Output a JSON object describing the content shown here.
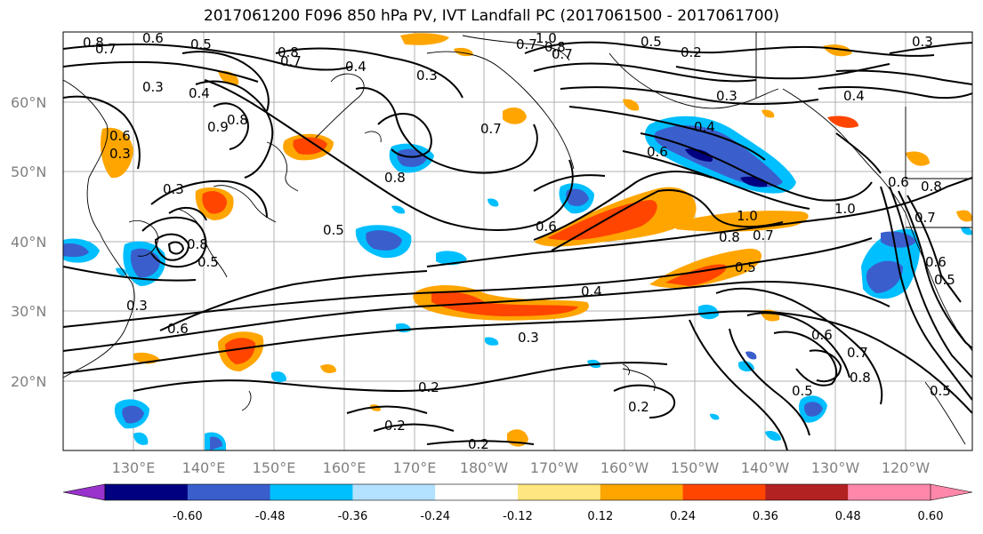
{
  "title": "2017061200 F096 850 hPa PV, IVT Landfall PC (2017061500 - 2017061700)",
  "lat_ticks": [
    "60°N",
    "50°N",
    "40°N",
    "30°N",
    "20°N"
  ],
  "lon_ticks": [
    "130°E",
    "140°E",
    "150°E",
    "160°E",
    "170°E",
    "180°W",
    "170°W",
    "160°W",
    "150°W",
    "140°W",
    "130°W",
    "120°W"
  ],
  "colorbar": {
    "tick_labels": [
      "-0.60",
      "-0.48",
      "-0.36",
      "-0.24",
      "-0.12",
      "0.12",
      "0.24",
      "0.36",
      "0.48",
      "0.60"
    ],
    "colors": [
      "#9933cc",
      "#000080",
      "#3a5fcd",
      "#00bfff",
      "#b2e2ff",
      "#ffffff",
      "#ffe680",
      "#ffa500",
      "#ff4500",
      "#b22222",
      "#ff88aa"
    ]
  },
  "contour_labels": [
    "0.8",
    "0.7",
    "0.6",
    "0.5",
    "0.8",
    "0.7",
    "0.3",
    "0.4",
    "1.0",
    "0.8",
    "0.7",
    "0.5",
    "0.2",
    "0.3",
    "0.3",
    "0.4",
    "0.4",
    "0.3",
    "0.7",
    "0.6",
    "0.4",
    "0.6",
    "0.8",
    "0.6",
    "0.5",
    "0.3",
    "0.8",
    "0.9",
    "0.3",
    "0.7",
    "0.8",
    "0.5",
    "0.8",
    "0.5",
    "1.0",
    "1.0",
    "0.8",
    "0.7",
    "0.6",
    "0.4",
    "0.3",
    "0.3",
    "0.6",
    "0.7",
    "0.2",
    "0.2",
    "0.2",
    "0.2",
    "0.6",
    "0.7",
    "0.8",
    "0.5",
    "0.5",
    "0.6",
    "0.5"
  ]
}
